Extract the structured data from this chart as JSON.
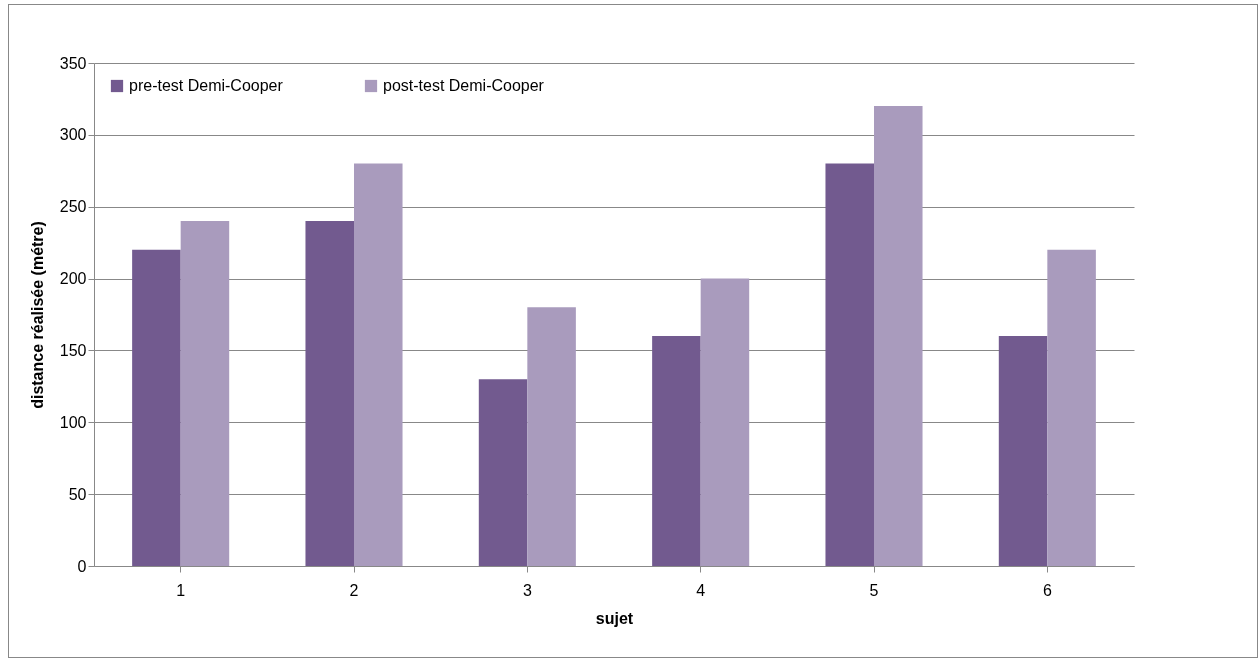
{
  "chart_data": {
    "type": "bar",
    "xlabel": "sujet",
    "ylabel": "distance réalisée (métre)",
    "categories": [
      "1",
      "2",
      "3",
      "4",
      "5",
      "6"
    ],
    "series": [
      {
        "name": "pre-test Demi-Cooper",
        "color": "#725a8f",
        "values": [
          220,
          240,
          130,
          160,
          280,
          160
        ]
      },
      {
        "name": "post-test Demi-Cooper",
        "color": "#a99bbd",
        "values": [
          240,
          280,
          180,
          200,
          320,
          220
        ]
      }
    ],
    "ylim": [
      0,
      350
    ],
    "yticks": [
      0,
      50,
      100,
      150,
      200,
      250,
      300,
      350
    ],
    "grid": "y",
    "legend": "top left"
  }
}
